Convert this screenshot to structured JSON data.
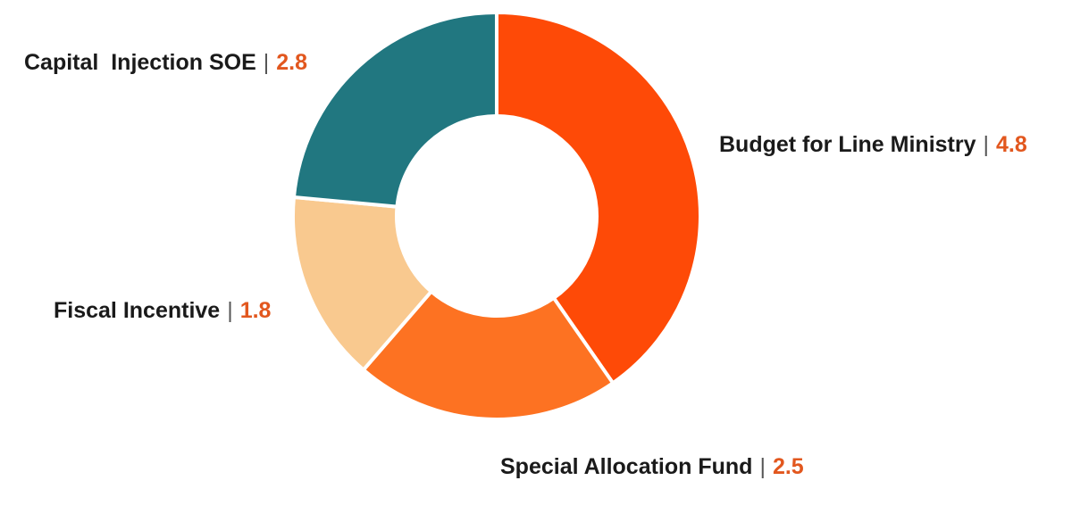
{
  "chart_data": {
    "type": "pie",
    "donut": true,
    "separator": "|",
    "title": "",
    "slices": [
      {
        "label": "Budget for Line Ministry",
        "value": 4.8,
        "value_label": "4.8",
        "color": "#fe4a07"
      },
      {
        "label": "Special Allocation Fund",
        "value": 2.5,
        "value_label": "2.5",
        "color": "#fd7222"
      },
      {
        "label": "Fiscal Incentive",
        "value": 1.8,
        "value_label": "1.8",
        "color": "#f9c98f"
      },
      {
        "label": "Capital  Injection SOE",
        "value": 2.8,
        "value_label": "2.8",
        "color": "#217780"
      }
    ],
    "start_angle_deg": 0,
    "direction": "clockwise"
  }
}
